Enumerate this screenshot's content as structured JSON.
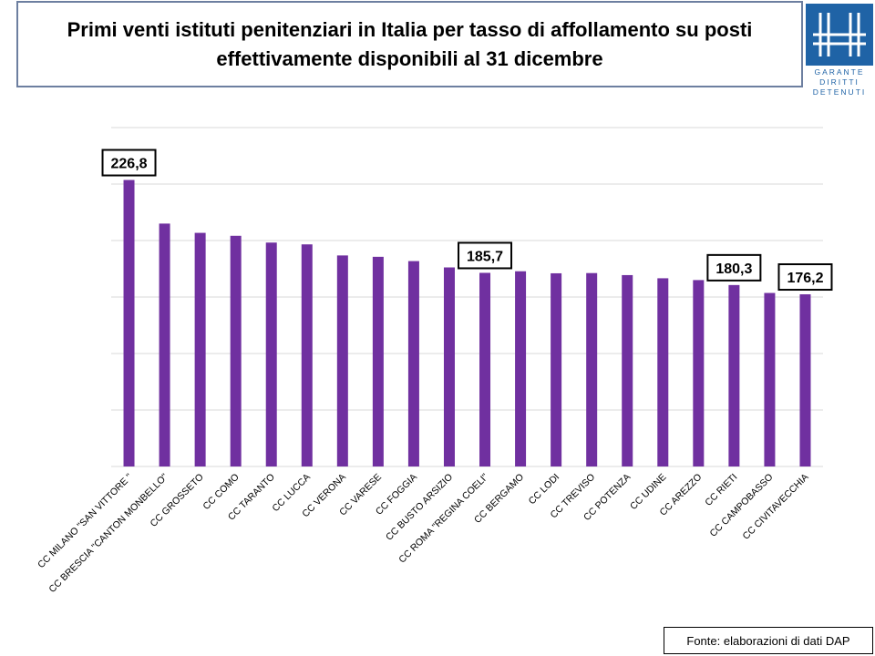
{
  "title": "Primi venti istituti penitenziari in Italia per tasso di affollamento su posti effettivamente disponibili al 31 dicembre",
  "logo": {
    "lines": [
      "GARANTE",
      "DIRITTI",
      "DETENUTI"
    ],
    "icon": "garante-logo-icon",
    "color": "#1f63a6"
  },
  "source": "Fonte: elaborazioni di dati DAP",
  "chart_data": {
    "type": "bar",
    "title": "",
    "xlabel": "",
    "ylabel": "",
    "ylim": [
      100,
      250
    ],
    "grid": true,
    "bar_color": "#7030a0",
    "categories": [
      "CC MILANO \"SAN VITTORE \"",
      "CC BRESCIA \"CANTON MONBELLO\"",
      "CC GROSSETO",
      "CC COMO",
      "CC TARANTO",
      "CC LUCCA",
      "CC VERONA",
      "CC VARESE",
      "CC FOGGIA",
      "CC BUSTO ARSIZIO",
      "CC ROMA \"REGINA COELI\"",
      "CC BERGAMO",
      "CC LODI",
      "CC TREVISO",
      "CC POTENZA",
      "CC UDINE",
      "CC AREZZO",
      "CC RIETI",
      "CC CAMPOBASSO",
      "CC CIVITAVECCHIA"
    ],
    "values": [
      226.8,
      207.5,
      203.4,
      202.1,
      199.1,
      198.3,
      193.4,
      192.8,
      190.9,
      188.1,
      185.7,
      186.4,
      185.5,
      185.6,
      184.7,
      183.3,
      182.5,
      180.3,
      176.8,
      176.2
    ],
    "data_labels": [
      {
        "index": 0,
        "text": "226,8"
      },
      {
        "index": 10,
        "text": "185,7"
      },
      {
        "index": 17,
        "text": "180,3"
      },
      {
        "index": 19,
        "text": "176,2"
      }
    ]
  }
}
